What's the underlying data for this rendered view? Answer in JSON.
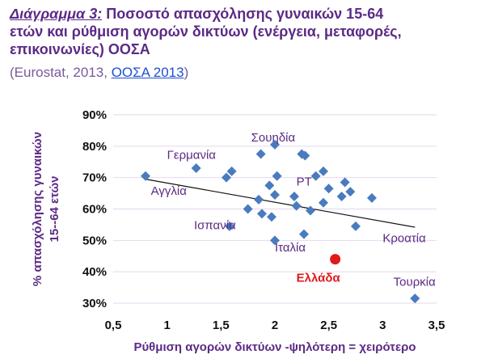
{
  "header": {
    "title_prefix": "Διάγραμμα 3:",
    "title_line1": " Ποσοστό απασχόλησης γυναικών 15-64",
    "title_line2": "ετών και ρύθμιση αγορών δικτύων (ενέργεια, μεταφορές,",
    "title_line3": "επικοινωνίες) ΟΟΣΑ",
    "source_open": "(Eurostat, 2013, ",
    "source_link": "ΟΟΣΑ 2013",
    "source_close": ")"
  },
  "colors": {
    "points": "#4a7bbf",
    "highlight": "#e0191b",
    "labels": "#5b2a86",
    "trend": "#111111",
    "grid": "#e6d7ee"
  },
  "chart_data": {
    "type": "scatter",
    "xlabel": "Ρύθμιση αγορών δικτύων -ψηλότερη = χειρότερο",
    "ylabel_line1": "% απασχόλησης γυναικών",
    "ylabel_line2": "15--64 ετών",
    "xlim": [
      0.5,
      3.5
    ],
    "ylim": [
      30,
      90
    ],
    "x_ticks": [
      "0,5",
      "1",
      "1,5",
      "2",
      "2,5",
      "3",
      "3,5"
    ],
    "y_ticks": [
      "30%",
      "40%",
      "50%",
      "60%",
      "70%",
      "80%",
      "90%"
    ],
    "grid": "horizontal",
    "points": [
      {
        "x": 0.8,
        "y": 70.5
      },
      {
        "x": 1.27,
        "y": 73
      },
      {
        "x": 1.55,
        "y": 70
      },
      {
        "x": 1.6,
        "y": 72
      },
      {
        "x": 1.58,
        "y": 54.5
      },
      {
        "x": 1.75,
        "y": 60
      },
      {
        "x": 1.85,
        "y": 63
      },
      {
        "x": 1.87,
        "y": 77.5
      },
      {
        "x": 1.88,
        "y": 58.5
      },
      {
        "x": 1.95,
        "y": 67.5
      },
      {
        "x": 1.97,
        "y": 57.5
      },
      {
        "x": 2.0,
        "y": 80.5
      },
      {
        "x": 2.02,
        "y": 70.5
      },
      {
        "x": 2.0,
        "y": 64.5
      },
      {
        "x": 2.0,
        "y": 50
      },
      {
        "x": 2.18,
        "y": 64
      },
      {
        "x": 2.2,
        "y": 61
      },
      {
        "x": 2.25,
        "y": 77.5
      },
      {
        "x": 2.28,
        "y": 77
      },
      {
        "x": 2.27,
        "y": 52
      },
      {
        "x": 2.33,
        "y": 59.5
      },
      {
        "x": 2.38,
        "y": 70.5
      },
      {
        "x": 2.45,
        "y": 72
      },
      {
        "x": 2.45,
        "y": 62
      },
      {
        "x": 2.5,
        "y": 66.5
      },
      {
        "x": 2.62,
        "y": 64
      },
      {
        "x": 2.65,
        "y": 68.5
      },
      {
        "x": 2.7,
        "y": 65.5
      },
      {
        "x": 2.75,
        "y": 54.5
      },
      {
        "x": 2.9,
        "y": 63.5
      },
      {
        "x": 3.3,
        "y": 31.5
      }
    ],
    "highlight": {
      "x": 2.56,
      "y": 44,
      "label": "Ελλάδα"
    },
    "trendline": {
      "x": [
        0.8,
        3.3
      ],
      "y": [
        69.5,
        54.2
      ]
    },
    "labels": [
      {
        "text": "Γερμανία",
        "x": 1.0,
        "y": 76
      },
      {
        "text": "Σουηδία",
        "x": 1.78,
        "y": 81.5
      },
      {
        "text": "PT",
        "x": 2.2,
        "y": 67.5
      },
      {
        "text": "Αγγλία",
        "x": 0.85,
        "y": 64.5
      },
      {
        "text": "Ισπανία",
        "x": 1.25,
        "y": 53.5
      },
      {
        "text": "Ιταλία",
        "x": 2.0,
        "y": 46.5
      },
      {
        "text": "Κροατία",
        "x": 3.0,
        "y": 49.5
      },
      {
        "text": "Τουρκία",
        "x": 3.1,
        "y": 35.5
      }
    ]
  }
}
